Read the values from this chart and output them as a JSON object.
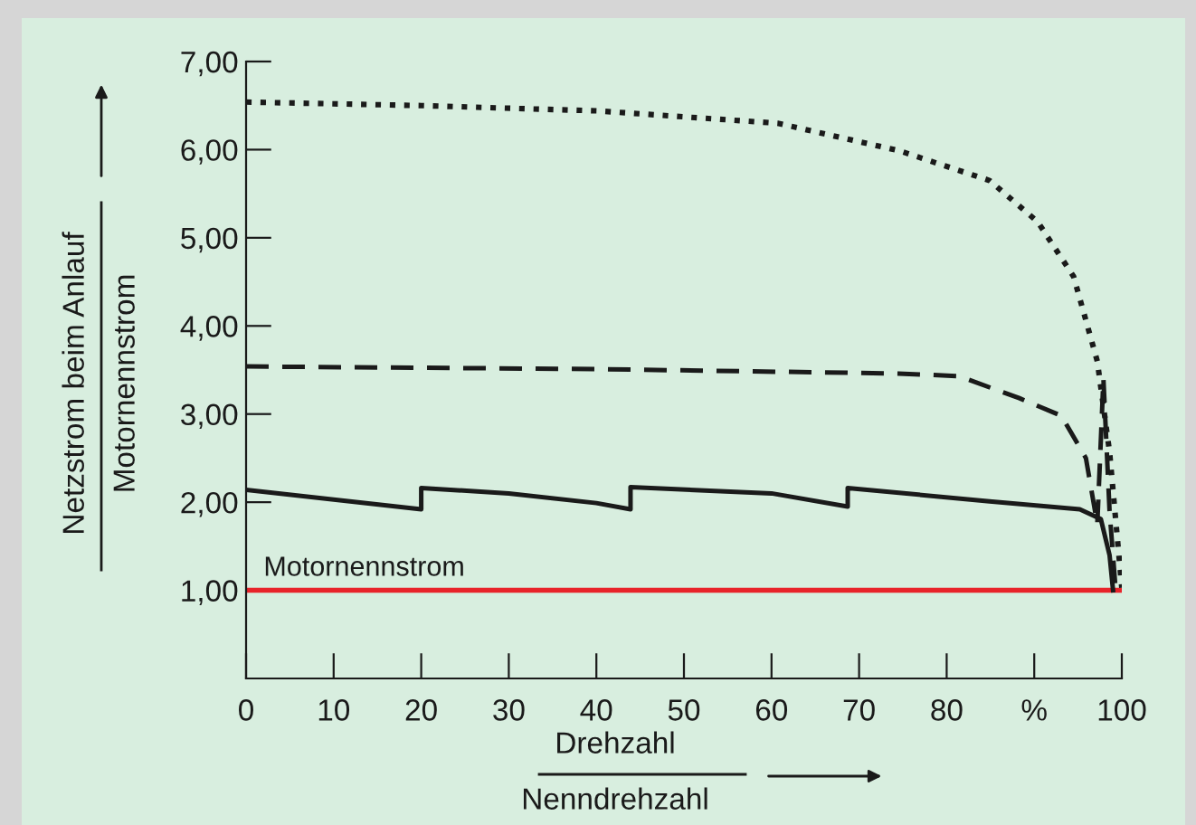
{
  "chart_data": {
    "type": "line",
    "xlabel": "Drehzahl\nNenndrehzahl",
    "ylabel": "Netzstrom beim Anlauf\nMotornennstrom",
    "xlim": [
      0,
      100
    ],
    "ylim": [
      0,
      7
    ],
    "xticks": [
      0,
      10,
      20,
      30,
      40,
      50,
      60,
      70,
      80,
      {
        "value": 90,
        "label": "%"
      },
      100
    ],
    "yticks": [
      {
        "value": 1,
        "label": "1,00"
      },
      {
        "value": 2,
        "label": "2,00"
      },
      {
        "value": 3,
        "label": "3,00"
      },
      {
        "value": 4,
        "label": "4,00"
      },
      {
        "value": 5,
        "label": "5,00"
      },
      {
        "value": 6,
        "label": "6,00"
      },
      {
        "value": 7,
        "label": "7,00"
      }
    ],
    "grid": false,
    "legend": false,
    "series": [
      {
        "color": "#1a1a1a",
        "line_style": "dotted",
        "x": [
          0,
          20,
          40.1,
          60.7,
          74.5,
          84.9,
          90.4,
          94.5,
          97.2,
          98.6,
          100
        ],
        "values": [
          6.54,
          6.5,
          6.44,
          6.3,
          5.99,
          5.65,
          5.18,
          4.56,
          3.6,
          2.57,
          1.03
        ]
      },
      {
        "color": "#1a1a1a",
        "line_style": "dashed",
        "x": [
          0,
          40.1,
          74.5,
          81.4,
          88.3,
          93.1,
          95.9,
          97.2,
          97.9,
          98.6,
          99.3
        ],
        "values": [
          3.54,
          3.51,
          3.46,
          3.43,
          3.18,
          2.98,
          2.5,
          1.75,
          3.4,
          1.9,
          1.0
        ]
      },
      {
        "color": "#1a1a1a",
        "line_style": "solid",
        "x": [
          0,
          20,
          20,
          30,
          40,
          43.9,
          43.9,
          60,
          68.7,
          68.7,
          84.9,
          95.2,
          97.6,
          98.6,
          99
        ],
        "values": [
          2.14,
          1.92,
          2.16,
          2.1,
          1.99,
          1.92,
          2.17,
          2.1,
          1.95,
          2.16,
          2.01,
          1.92,
          1.81,
          1.4,
          1.0
        ]
      }
    ],
    "ref_lines": [
      {
        "axis": "y",
        "value": 1,
        "label": "Motornennstrom",
        "color": "#e8232a",
        "line_style": "solid"
      }
    ]
  }
}
